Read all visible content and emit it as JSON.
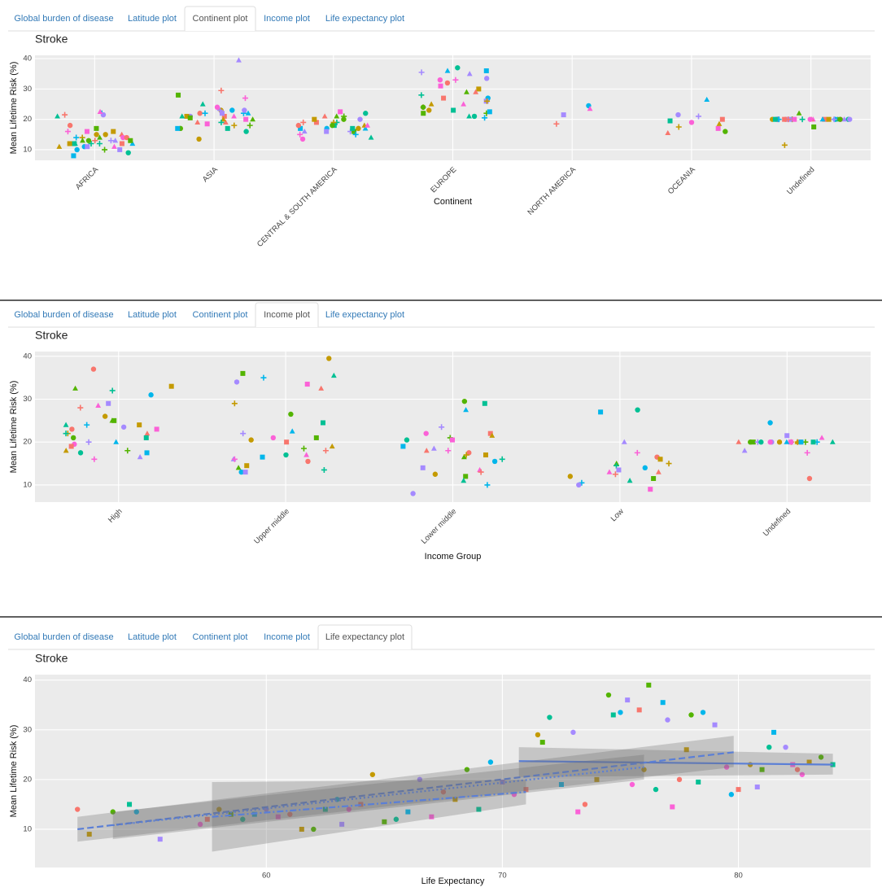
{
  "panels": [
    {
      "tabs": [
        "Global burden of disease",
        "Latitude plot",
        "Continent plot",
        "Income plot",
        "Life expectancy plot"
      ],
      "active": 2,
      "chart": {
        "type": "jitter",
        "title": "Stroke",
        "xlabel": "Continent",
        "ylabel": "Mean Lifetime Risk (%)",
        "ylim": [
          6.5,
          41.1
        ],
        "yticks": [
          10,
          20,
          30,
          40
        ],
        "categories": [
          "AFRICA",
          "ASIA",
          "CENTRAL & SOUTH AMERICA",
          "EUROPE",
          "NORTH AMERICA",
          "OCEANIA",
          "Undefined"
        ],
        "groups": [
          [
            18,
            16,
            14,
            12,
            10,
            10,
            11,
            13,
            15,
            17,
            21,
            22,
            21.5,
            16,
            15,
            14,
            13,
            12,
            12,
            13,
            14,
            12,
            11,
            10,
            9,
            8,
            13,
            16,
            14,
            12,
            13,
            12,
            11,
            11,
            22.5,
            21.5,
            15,
            13,
            12,
            14
          ],
          [
            23,
            28,
            25,
            22,
            21,
            20,
            19,
            18,
            17,
            17,
            22,
            23,
            24,
            21,
            20,
            18,
            16,
            17,
            39.5,
            27,
            22,
            21,
            20,
            19,
            23,
            22,
            21,
            29.5,
            13.5,
            20.5,
            21,
            22,
            23,
            18.5,
            19
          ],
          [
            20,
            18,
            17,
            16,
            13.5,
            19,
            18,
            21,
            22,
            17,
            16,
            15,
            18,
            20,
            21,
            19,
            17,
            16,
            18,
            19,
            17,
            16,
            14,
            15,
            20,
            22.5,
            21,
            19,
            18,
            17
          ],
          [
            37,
            36,
            35,
            33,
            32,
            30,
            29,
            28,
            27,
            26,
            25,
            24,
            23,
            22,
            21,
            20.5,
            33.5,
            31,
            29,
            26,
            24,
            23,
            36,
            35.5,
            33,
            27,
            25,
            22,
            21,
            22.5
          ],
          [
            24.5,
            21.5,
            23.5,
            18.5
          ],
          [
            21.5,
            17,
            15.5,
            17.5,
            16,
            19.5,
            26.5,
            21,
            19,
            20,
            18.5
          ],
          [
            20,
            20,
            20,
            20,
            20,
            20,
            20,
            20,
            20,
            20,
            22,
            20,
            20,
            20,
            20,
            20,
            20,
            17.5,
            20,
            20,
            20,
            20,
            20,
            11.5,
            20,
            20,
            20,
            20,
            20,
            20
          ]
        ],
        "palette": [
          "#f8766d",
          "#c49a00",
          "#53b400",
          "#00c094",
          "#00b6eb",
          "#a58aff",
          "#fb61d7"
        ]
      }
    },
    {
      "tabs": [
        "Global burden of disease",
        "Latitude plot",
        "Continent plot",
        "Income plot",
        "Life expectancy plot"
      ],
      "active": 3,
      "chart": {
        "type": "jitter",
        "title": "Stroke",
        "xlabel": "Income Group",
        "ylabel": "Mean Lifetime Risk (%)",
        "ylim": [
          6.0,
          41.1
        ],
        "yticks": [
          10,
          20,
          30,
          40
        ],
        "categories": [
          "High",
          "Upper middle",
          "Lower middle",
          "Low",
          "Undefined"
        ],
        "groups": [
          [
            37,
            33,
            32.5,
            32,
            31,
            29,
            28.5,
            28,
            26,
            25,
            24,
            24,
            23.5,
            23,
            22,
            22,
            21,
            21,
            20,
            20,
            19.5,
            19,
            18,
            18,
            17.5,
            17.5,
            16.5,
            16,
            23,
            24,
            25,
            22
          ],
          [
            39.5,
            36,
            35.5,
            35,
            34,
            33.5,
            32.5,
            29,
            26.5,
            24.5,
            22.5,
            22,
            21,
            20,
            19,
            18.5,
            17,
            16.5,
            16,
            16,
            15.5,
            14.5,
            14,
            13.5,
            13,
            13,
            17,
            18,
            20.5,
            21
          ],
          [
            29.5,
            29,
            27.5,
            23.5,
            22,
            22,
            21.5,
            21,
            20.5,
            19,
            18.5,
            18,
            17.5,
            17,
            16.5,
            16,
            15.5,
            14,
            13.5,
            13,
            12.5,
            12,
            11,
            10,
            8,
            20.5,
            18,
            17
          ],
          [
            27.5,
            27,
            20,
            17.5,
            16.5,
            16,
            15,
            14.5,
            14,
            13.5,
            13,
            12.5,
            12,
            11.5,
            11,
            10.5,
            10,
            9,
            13,
            15
          ],
          [
            24.5,
            21.5,
            21,
            20,
            20,
            20,
            20,
            20,
            20,
            20,
            20,
            20,
            20,
            20,
            20,
            20,
            20,
            20,
            20,
            20,
            20,
            20,
            18,
            17.5,
            11.5
          ]
        ],
        "palette": [
          "#f8766d",
          "#c49a00",
          "#53b400",
          "#00c094",
          "#00b6eb",
          "#a58aff",
          "#fb61d7"
        ]
      }
    },
    {
      "tabs": [
        "Global burden of disease",
        "Latitude plot",
        "Continent plot",
        "Income plot",
        "Life expectancy plot"
      ],
      "active": 4,
      "chart": {
        "type": "scatter",
        "title": "Stroke",
        "xlabel": "Life Expectancy",
        "ylabel": "Mean Lifetime Risk (%)",
        "xlim": [
          50.2,
          85.6
        ],
        "xticks": [
          60,
          70,
          80
        ],
        "ylim": [
          2.3,
          41.1
        ],
        "yticks": [
          10,
          20,
          30,
          40
        ],
        "x": [
          52,
          52.5,
          53.5,
          54.2,
          54.5,
          55.5,
          57.2,
          57.5,
          58,
          58.5,
          59,
          59.5,
          60,
          60.5,
          61,
          61.5,
          62,
          62.5,
          63,
          63.2,
          63.5,
          64,
          64.5,
          65,
          65.5,
          66,
          66.5,
          67,
          67.5,
          68,
          68.5,
          69,
          69.5,
          70,
          70.5,
          71,
          71.5,
          71.7,
          72,
          72.5,
          73,
          73.2,
          73.5,
          74,
          74.5,
          74.7,
          75,
          75.3,
          75.5,
          75.8,
          76,
          76.2,
          76.5,
          76.8,
          77,
          77.2,
          77.5,
          77.8,
          78,
          78.3,
          78.5,
          79,
          79.5,
          80,
          80.5,
          81,
          81.3,
          81.5,
          82,
          82.3,
          82.5,
          83,
          83.5,
          84,
          79.7,
          80.8,
          82.7
        ],
        "y": [
          14,
          9,
          13.5,
          15,
          13.5,
          8,
          11,
          12,
          14,
          13,
          12,
          13,
          14,
          12.5,
          13,
          10,
          10,
          14,
          16,
          11,
          14,
          15,
          21,
          11.5,
          12,
          13.5,
          20,
          12.5,
          17.5,
          16,
          22,
          14,
          23.5,
          19.5,
          17,
          18,
          29,
          27.5,
          32.5,
          19,
          29.5,
          13.5,
          15,
          20,
          37,
          33,
          33.5,
          36,
          19,
          34,
          22,
          39,
          18,
          35.5,
          32,
          14.5,
          20,
          26,
          33,
          19.5,
          33.5,
          31,
          22.5,
          18,
          23,
          22,
          26.5,
          29.5,
          26.5,
          23,
          22,
          23.5,
          24.5,
          23,
          17,
          18.5,
          21
        ],
        "fits": [
          {
            "style": "solid",
            "x": [
              70.7,
              84
            ],
            "y": [
              23.7,
              23.0
            ],
            "lower": [
              20.5,
              21
            ],
            "upper": [
              26.5,
              25.2
            ]
          },
          {
            "style": "dashed",
            "x": [
              52,
              79.8
            ],
            "y": [
              10,
              25.5
            ],
            "lower": [
              7.5,
              22.5
            ],
            "upper": [
              12.5,
              28.8
            ]
          },
          {
            "style": "dotted",
            "x": [
              53.5,
              76
            ],
            "y": [
              10.8,
              22.5
            ],
            "lower": [
              8,
              20
            ],
            "upper": [
              13.5,
              25
            ]
          },
          {
            "style": "dashdot",
            "x": [
              57.7,
              71
            ],
            "y": [
              12.5,
              17.5
            ],
            "lower": [
              5.5,
              15
            ],
            "upper": [
              19.5,
              20
            ]
          }
        ],
        "line_color": "#5b7fd6",
        "palette": [
          "#f8766d",
          "#c49a00",
          "#53b400",
          "#00c094",
          "#00b6eb",
          "#a58aff",
          "#fb61d7"
        ]
      }
    }
  ]
}
